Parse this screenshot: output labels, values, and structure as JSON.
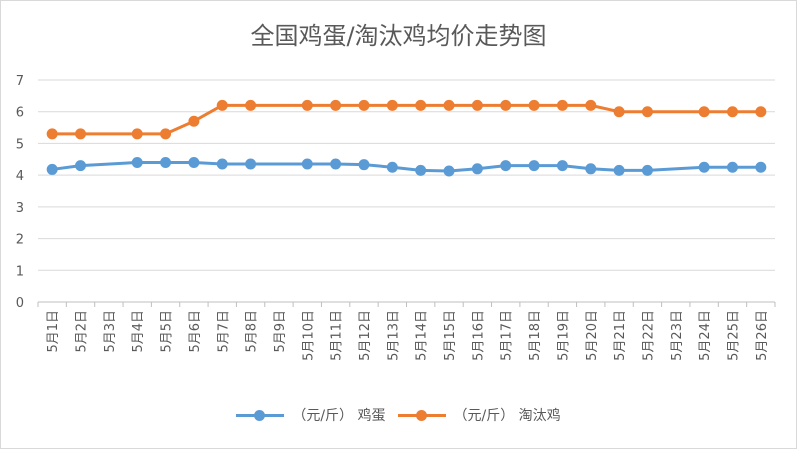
{
  "chart_data": {
    "type": "line",
    "title": "全国鸡蛋/淘汰鸡均价走势图",
    "categories": [
      "5月1日",
      "5月2日",
      "5月3日",
      "5月4日",
      "5月5日",
      "5月6日",
      "5月7日",
      "5月8日",
      "5月9日",
      "5月10日",
      "5月11日",
      "5月12日",
      "5月13日",
      "5月14日",
      "5月15日",
      "5月16日",
      "5月17日",
      "5月18日",
      "5月19日",
      "5月20日",
      "5月21日",
      "5月22日",
      "5月23日",
      "5月24日",
      "5月25日",
      "5月26日"
    ],
    "y_ticks": [
      "0",
      "1",
      "2",
      "3",
      "4",
      "5",
      "6",
      "7"
    ],
    "ylim": [
      0,
      7
    ],
    "grid": true,
    "legend_position": "bottom",
    "series": [
      {
        "name": "（元/斤） 鸡蛋",
        "color": "#5b9bd5",
        "values": [
          4.18,
          4.3,
          null,
          4.4,
          4.4,
          4.4,
          4.35,
          4.35,
          null,
          4.35,
          4.35,
          4.33,
          4.25,
          4.15,
          4.13,
          4.2,
          4.3,
          4.3,
          4.3,
          4.2,
          4.15,
          4.15,
          null,
          4.25,
          4.25,
          4.25
        ]
      },
      {
        "name": "（元/斤） 淘汰鸡",
        "color": "#ed7d31",
        "values": [
          5.3,
          5.3,
          null,
          5.3,
          5.3,
          5.7,
          6.2,
          6.2,
          null,
          6.2,
          6.2,
          6.2,
          6.2,
          6.2,
          6.2,
          6.2,
          6.2,
          6.2,
          6.2,
          6.2,
          6.0,
          6.0,
          null,
          6.0,
          6.0,
          6.0
        ]
      }
    ]
  }
}
